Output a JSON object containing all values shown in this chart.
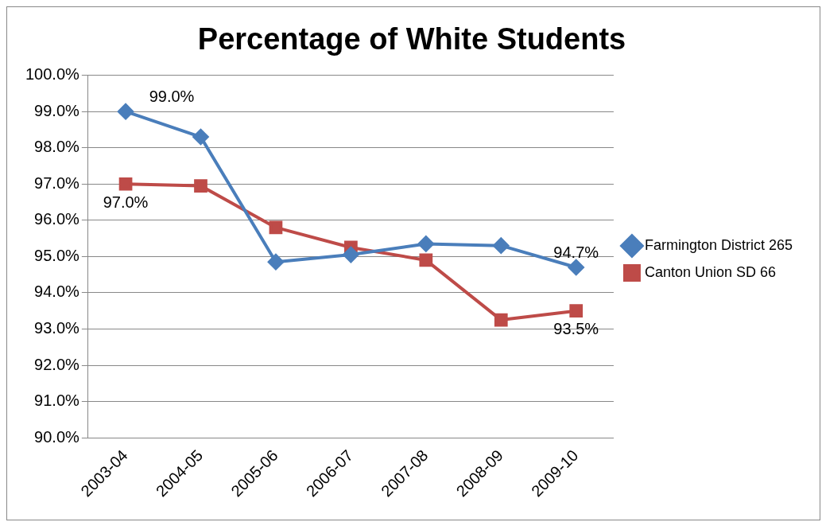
{
  "chart_data": {
    "type": "line",
    "title": "Percentage of White Students",
    "categories": [
      "2003-04",
      "2004-05",
      "2005-06",
      "2006-07",
      "2007-08",
      "2008-09",
      "2009-10"
    ],
    "series": [
      {
        "name": "Farmington District 265",
        "color": "#4a7ebb",
        "marker": "diamond",
        "values": [
          99.0,
          98.3,
          94.85,
          95.05,
          95.35,
          95.3,
          94.7
        ],
        "value_labels": [
          "99.0%",
          null,
          null,
          null,
          null,
          null,
          "94.7%"
        ]
      },
      {
        "name": "Canton Union SD 66",
        "color": "#be4b48",
        "marker": "square",
        "values": [
          97.0,
          96.95,
          95.8,
          95.25,
          94.9,
          93.25,
          93.5
        ],
        "value_labels": [
          "97.0%",
          null,
          null,
          null,
          null,
          null,
          "93.5%"
        ]
      }
    ],
    "ylim": [
      90,
      100
    ],
    "yticks": [
      {
        "value": 90,
        "label": "90.0%"
      },
      {
        "value": 91,
        "label": "91.0%"
      },
      {
        "value": 92,
        "label": "92.0%"
      },
      {
        "value": 93,
        "label": "93.0%"
      },
      {
        "value": 94,
        "label": "94.0%"
      },
      {
        "value": 95,
        "label": "95.0%"
      },
      {
        "value": 96,
        "label": "96.0%"
      },
      {
        "value": 97,
        "label": "97.0%"
      },
      {
        "value": 98,
        "label": "98.0%"
      },
      {
        "value": 99,
        "label": "99.0%"
      },
      {
        "value": 100,
        "label": "100.0%"
      }
    ],
    "grid": "y",
    "legend": "right",
    "line_style": "solid"
  }
}
